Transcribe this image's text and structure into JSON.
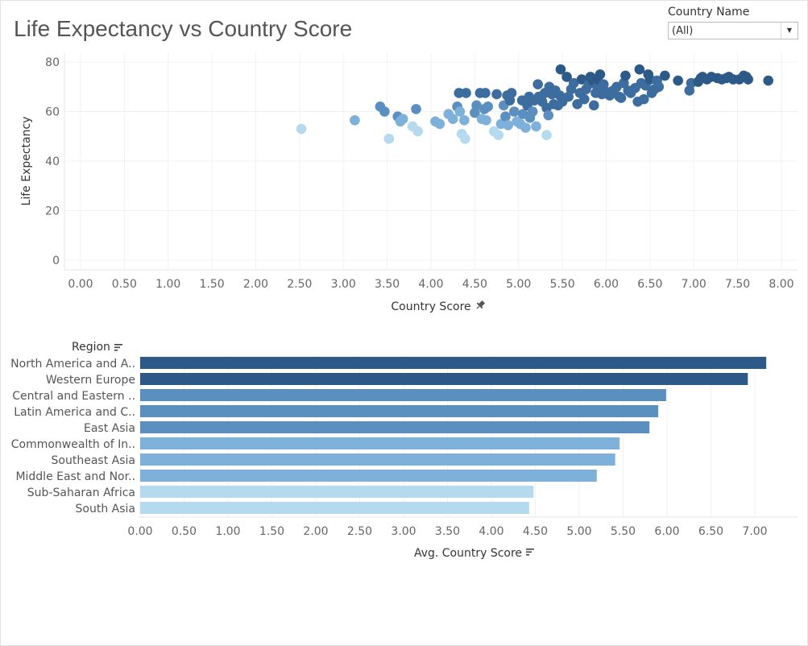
{
  "title": "Life Expectancy vs Country Score",
  "filter": {
    "label": "Country Name",
    "value": "(All)"
  },
  "colors": {
    "darkest": "#2c5987",
    "dark": "#3c6d9e",
    "mid": "#5b8fc0",
    "light": "#7eb1d9",
    "lightest": "#b5daee"
  },
  "chart_data": [
    {
      "type": "scatter",
      "xlabel": "Country Score",
      "xlabel_icon": "pin-icon",
      "ylabel": "Life Expectancy",
      "xlim": [
        0,
        8
      ],
      "ylim": [
        0,
        80
      ],
      "x_ticks": [
        "0.00",
        "0.50",
        "1.00",
        "1.50",
        "2.00",
        "2.50",
        "3.00",
        "3.50",
        "4.00",
        "4.50",
        "5.00",
        "5.50",
        "6.00",
        "6.50",
        "7.00",
        "7.50",
        "8.00"
      ],
      "y_ticks": [
        "0",
        "20",
        "40",
        "60",
        "80"
      ],
      "grid": true,
      "points": [
        [
          2.52,
          53,
          4
        ],
        [
          3.13,
          56.5,
          3
        ],
        [
          3.42,
          62,
          2
        ],
        [
          3.47,
          60,
          2
        ],
        [
          3.52,
          49,
          4
        ],
        [
          3.62,
          58,
          2
        ],
        [
          3.65,
          56,
          3
        ],
        [
          3.68,
          57,
          3
        ],
        [
          3.79,
          54,
          4
        ],
        [
          3.83,
          61,
          2
        ],
        [
          3.85,
          52,
          4
        ],
        [
          4.05,
          56,
          3
        ],
        [
          4.1,
          55,
          3
        ],
        [
          4.2,
          59,
          3
        ],
        [
          4.25,
          57,
          3
        ],
        [
          4.3,
          62,
          2
        ],
        [
          4.33,
          60,
          3
        ],
        [
          4.35,
          51,
          4
        ],
        [
          4.38,
          56.5,
          3
        ],
        [
          4.32,
          67.5,
          1
        ],
        [
          4.4,
          67.5,
          1
        ],
        [
          4.39,
          49,
          4
        ],
        [
          4.5,
          59.5,
          2
        ],
        [
          4.52,
          62.5,
          2
        ],
        [
          4.58,
          57,
          3
        ],
        [
          4.61,
          61,
          2
        ],
        [
          4.63,
          56.5,
          3
        ],
        [
          4.56,
          67.5,
          1
        ],
        [
          4.62,
          67.5,
          1
        ],
        [
          4.65,
          62,
          2
        ],
        [
          4.72,
          52,
          4
        ],
        [
          4.75,
          67,
          1
        ],
        [
          4.77,
          50.5,
          4
        ],
        [
          4.8,
          55,
          3
        ],
        [
          4.83,
          62.5,
          2
        ],
        [
          4.85,
          58,
          2
        ],
        [
          4.88,
          54.5,
          3
        ],
        [
          4.87,
          66.5,
          1
        ],
        [
          4.9,
          64.5,
          1
        ],
        [
          4.92,
          67.5,
          1
        ],
        [
          4.95,
          60,
          2
        ],
        [
          4.98,
          56,
          3
        ],
        [
          5.02,
          55,
          3
        ],
        [
          5.05,
          59,
          2
        ],
        [
          5.04,
          64.5,
          1
        ],
        [
          5.08,
          53.5,
          3
        ],
        [
          5.1,
          62.5,
          1
        ],
        [
          5.12,
          66,
          1
        ],
        [
          5.13,
          57.5,
          2
        ],
        [
          5.16,
          60,
          2
        ],
        [
          5.18,
          64.5,
          1
        ],
        [
          5.2,
          54,
          3
        ],
        [
          5.23,
          66,
          1
        ],
        [
          5.22,
          71,
          1
        ],
        [
          5.27,
          64,
          1
        ],
        [
          5.3,
          67.5,
          1
        ],
        [
          5.32,
          61.5,
          1
        ],
        [
          5.32,
          50.5,
          4
        ],
        [
          5.34,
          58.5,
          2
        ],
        [
          5.38,
          67,
          1
        ],
        [
          5.35,
          70,
          1
        ],
        [
          5.4,
          63,
          1
        ],
        [
          5.45,
          62.5,
          1
        ],
        [
          5.42,
          68.5,
          1
        ],
        [
          5.47,
          66.5,
          1
        ],
        [
          5.5,
          64,
          1
        ],
        [
          5.48,
          77,
          0
        ],
        [
          5.55,
          74,
          0
        ],
        [
          5.57,
          66,
          1
        ],
        [
          5.6,
          69,
          1
        ],
        [
          5.63,
          71.5,
          1
        ],
        [
          5.67,
          63,
          1
        ],
        [
          5.7,
          67.5,
          1
        ],
        [
          5.72,
          73,
          0
        ],
        [
          5.75,
          65,
          1
        ],
        [
          5.77,
          69,
          1
        ],
        [
          5.8,
          71,
          1
        ],
        [
          5.82,
          74,
          0
        ],
        [
          5.85,
          72.5,
          0
        ],
        [
          5.86,
          62.5,
          1
        ],
        [
          5.88,
          67.5,
          1
        ],
        [
          5.9,
          70,
          1
        ],
        [
          5.9,
          73,
          0
        ],
        [
          5.93,
          75,
          0
        ],
        [
          5.95,
          67,
          1
        ],
        [
          5.97,
          71,
          1
        ],
        [
          6.0,
          68,
          1
        ],
        [
          6.02,
          67,
          1
        ],
        [
          6.04,
          66.5,
          1
        ],
        [
          6.08,
          68.5,
          1
        ],
        [
          6.12,
          70,
          1
        ],
        [
          6.15,
          66,
          1
        ],
        [
          6.17,
          65.5,
          1
        ],
        [
          6.2,
          71.5,
          1
        ],
        [
          6.22,
          74.5,
          0
        ],
        [
          6.25,
          68.5,
          1
        ],
        [
          6.28,
          67.5,
          1
        ],
        [
          6.33,
          69.5,
          1
        ],
        [
          6.36,
          64,
          1
        ],
        [
          6.38,
          77,
          0
        ],
        [
          6.4,
          71.5,
          1
        ],
        [
          6.43,
          65,
          1
        ],
        [
          6.45,
          70.5,
          1
        ],
        [
          6.48,
          75,
          0
        ],
        [
          6.5,
          73,
          0
        ],
        [
          6.52,
          67.5,
          1
        ],
        [
          6.55,
          69,
          1
        ],
        [
          6.58,
          72.5,
          1
        ],
        [
          6.6,
          70,
          1
        ],
        [
          6.67,
          74.5,
          0
        ],
        [
          6.82,
          72.5,
          0
        ],
        [
          6.95,
          68.5,
          1
        ],
        [
          6.97,
          71.5,
          1
        ],
        [
          7.05,
          72,
          0
        ],
        [
          7.08,
          73.5,
          0
        ],
        [
          7.1,
          74,
          0
        ],
        [
          7.15,
          73,
          0
        ],
        [
          7.2,
          74,
          0
        ],
        [
          7.27,
          73.5,
          0
        ],
        [
          7.32,
          73,
          0
        ],
        [
          7.37,
          73.5,
          0
        ],
        [
          7.4,
          74,
          0
        ],
        [
          7.45,
          73,
          0
        ],
        [
          7.52,
          73,
          0
        ],
        [
          7.57,
          74.5,
          0
        ],
        [
          7.6,
          74,
          0
        ],
        [
          7.62,
          73,
          0
        ],
        [
          7.85,
          72.5,
          0
        ]
      ]
    },
    {
      "type": "bar",
      "orientation": "horizontal",
      "category_header": "Region",
      "xlabel": "Avg. Country Score",
      "xlim": [
        0,
        7.5
      ],
      "x_ticks": [
        "0.00",
        "0.50",
        "1.00",
        "1.50",
        "2.00",
        "2.50",
        "3.00",
        "3.50",
        "4.00",
        "4.50",
        "5.00",
        "5.50",
        "6.00",
        "6.50",
        "7.00"
      ],
      "categories": [
        "North America and A..",
        "Western Europe",
        "Central and Eastern ..",
        "Latin America and C..",
        "East Asia",
        "Commonwealth of In..",
        "Southeast Asia",
        "Middle East and Nor..",
        "Sub-Saharan Africa",
        "South Asia"
      ],
      "values": [
        7.13,
        6.92,
        5.99,
        5.9,
        5.8,
        5.46,
        5.41,
        5.2,
        4.48,
        4.43
      ],
      "color_levels": [
        0,
        0,
        2,
        2,
        2,
        3,
        3,
        3,
        4,
        4
      ]
    }
  ]
}
